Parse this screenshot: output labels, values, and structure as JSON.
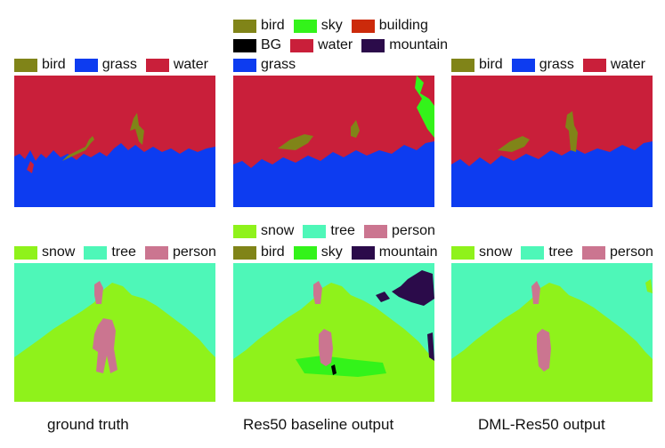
{
  "colors": {
    "bird": "#808418",
    "grass": "#0d3cf0",
    "water": "#c91f3a",
    "sky": "#33f31a",
    "building": "#cc2a0b",
    "BG": "#000000",
    "mountain": "#2b0b4a",
    "snow": "#8ff21b",
    "tree": "#4ef7b8",
    "person": "#cb7590"
  },
  "legends": {
    "row1_gt": [
      "bird",
      "grass",
      "water"
    ],
    "row1_base_a": [
      "bird",
      "sky",
      "building"
    ],
    "row1_base_b": [
      "BG",
      "water",
      "mountain"
    ],
    "row1_base_c": [
      "grass"
    ],
    "row1_dml": [
      "bird",
      "grass",
      "water"
    ],
    "row2_gt": [
      "snow",
      "tree",
      "person"
    ],
    "row2_base_a": [
      "snow",
      "tree",
      "person"
    ],
    "row2_base_b": [
      "bird",
      "sky",
      "mountain"
    ],
    "row2_dml": [
      "snow",
      "tree",
      "person"
    ]
  },
  "captions": {
    "ground_truth": "ground truth",
    "baseline": "Res50 baseline output",
    "dml": "DML-Res50 output"
  }
}
